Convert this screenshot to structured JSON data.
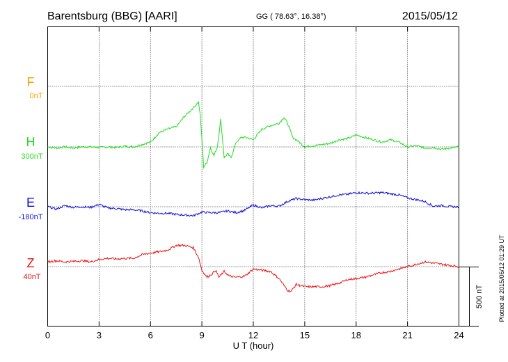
{
  "header": {
    "station": "Barentsburg (BBG)  [AARI]",
    "coords": "GG ( 78.63°,  16.38°)",
    "date": "2015/05/12"
  },
  "side_note": "Plotted at 2015/06/12 01:29 UT",
  "scale_label": "500 nT",
  "colors": {
    "F": "#f4a300",
    "H": "#22dd22",
    "E": "#1111dd",
    "Z": "#ee1111"
  },
  "chart_data": {
    "type": "line",
    "xlabel": "U T (hour)",
    "xlim": [
      0,
      24
    ],
    "x_ticks": [
      0,
      3,
      6,
      9,
      12,
      15,
      18,
      21,
      24
    ],
    "x_tick_labels": [
      "0",
      "3",
      "6",
      "9",
      "12",
      "15",
      "18",
      "21",
      "24"
    ],
    "scale_bar_nT": 500,
    "series": [
      {
        "name": "F",
        "baseline_label": "0nT",
        "baseline_nT": 0,
        "x": [],
        "values": []
      },
      {
        "name": "H",
        "baseline_label": "300nT",
        "baseline_nT": 300,
        "x": [
          0,
          0.5,
          1,
          1.5,
          2,
          2.5,
          3,
          3.5,
          4,
          4.5,
          5,
          5.5,
          6,
          6.5,
          7,
          7.5,
          8,
          8.5,
          8.8,
          8.9,
          9.0,
          9.1,
          9.3,
          9.5,
          9.7,
          9.9,
          10.1,
          10.3,
          10.5,
          10.7,
          11,
          11.3,
          11.6,
          12,
          12.5,
          13,
          13.5,
          13.8,
          14,
          14.3,
          14.6,
          15,
          15.5,
          16,
          16.5,
          17,
          17.5,
          18,
          18.5,
          19,
          19.5,
          20,
          20.5,
          21,
          21.5,
          22,
          22.5,
          23,
          23.5,
          24
        ],
        "values": [
          0,
          -10,
          0,
          -10,
          0,
          0,
          -5,
          0,
          -5,
          5,
          0,
          20,
          40,
          120,
          150,
          170,
          260,
          330,
          380,
          270,
          70,
          -170,
          -130,
          -5,
          -75,
          0,
          230,
          -90,
          -60,
          -90,
          40,
          80,
          80,
          60,
          150,
          180,
          200,
          250,
          200,
          80,
          50,
          0,
          10,
          20,
          30,
          60,
          70,
          100,
          80,
          60,
          40,
          60,
          40,
          0,
          10,
          -10,
          -5,
          -20,
          -10,
          0
        ]
      },
      {
        "name": "E",
        "baseline_label": "-180nT",
        "baseline_nT": -180,
        "x": [
          0,
          0.5,
          1,
          1.5,
          2,
          2.5,
          3,
          3.5,
          4,
          4.5,
          5,
          5.5,
          6,
          6.5,
          7,
          7.5,
          8,
          8.5,
          9,
          9.5,
          10,
          10.5,
          11,
          11.5,
          12,
          12.5,
          13,
          13.5,
          14,
          14.5,
          15,
          15.5,
          16,
          16.5,
          17,
          17.5,
          18,
          18.5,
          19,
          19.5,
          20,
          20.5,
          21,
          21.5,
          22,
          22.5,
          23,
          23.5,
          24
        ],
        "values": [
          0,
          -20,
          10,
          -5,
          0,
          -5,
          20,
          -10,
          -15,
          -25,
          -25,
          -35,
          -50,
          -55,
          -55,
          -65,
          -70,
          -75,
          -45,
          -50,
          -50,
          -35,
          -50,
          -30,
          15,
          -10,
          10,
          5,
          45,
          70,
          60,
          55,
          70,
          85,
          100,
          105,
          120,
          115,
          115,
          120,
          110,
          100,
          75,
          60,
          45,
          5,
          10,
          0,
          0
        ]
      },
      {
        "name": "Z",
        "baseline_label": "40nT",
        "baseline_nT": 40,
        "x": [
          0,
          0.5,
          1,
          1.5,
          2,
          2.5,
          3,
          3.5,
          4,
          4.5,
          5,
          5.5,
          6,
          6.5,
          7,
          7.5,
          8,
          8.5,
          8.8,
          9,
          9.3,
          9.6,
          9.8,
          10,
          10.3,
          10.6,
          11,
          11.5,
          12,
          12.5,
          13,
          13.5,
          14,
          14.2,
          14.5,
          15,
          15.5,
          16,
          16.5,
          17,
          17.5,
          18,
          18.5,
          19,
          19.5,
          20,
          20.5,
          21,
          21.5,
          22,
          22.5,
          23,
          23.5,
          24
        ],
        "values": [
          40,
          50,
          40,
          45,
          50,
          40,
          60,
          70,
          65,
          70,
          70,
          100,
          115,
          125,
          140,
          180,
          180,
          160,
          80,
          -30,
          -90,
          -60,
          -30,
          -90,
          -40,
          -80,
          -90,
          -80,
          -20,
          -30,
          -40,
          -100,
          -200,
          -210,
          -150,
          -170,
          -170,
          -170,
          -160,
          -140,
          -110,
          -100,
          -90,
          -70,
          -50,
          -40,
          -20,
          0,
          20,
          40,
          30,
          20,
          10,
          0
        ]
      }
    ]
  }
}
